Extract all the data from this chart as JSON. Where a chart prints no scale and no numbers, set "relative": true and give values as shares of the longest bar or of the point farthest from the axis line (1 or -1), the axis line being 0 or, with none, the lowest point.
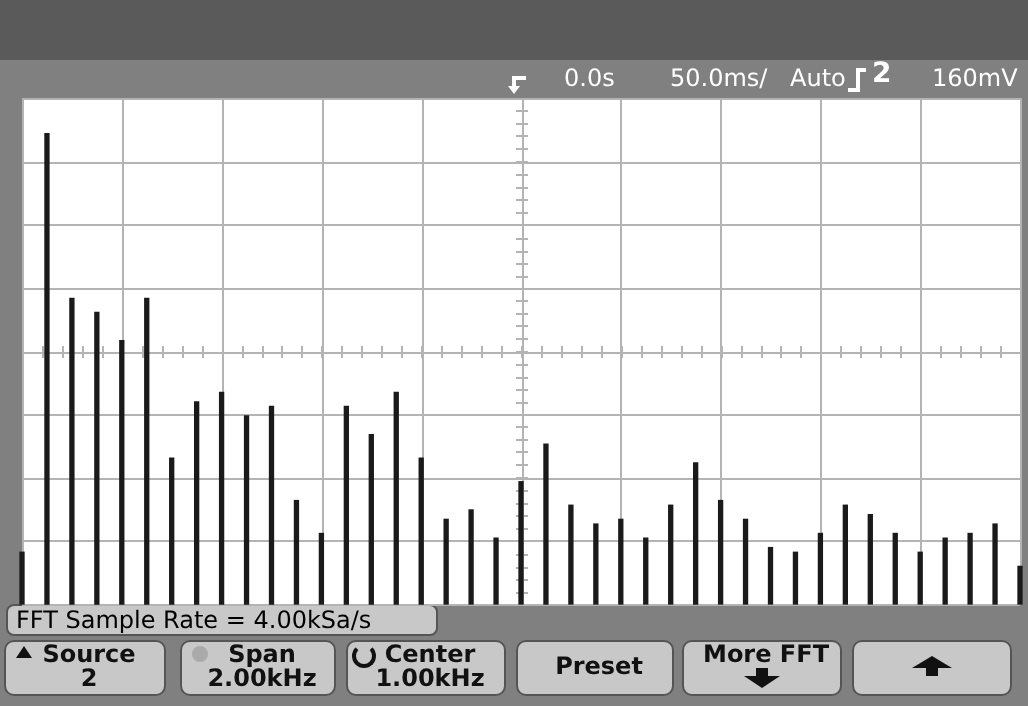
{
  "chart_data": {
    "type": "bar",
    "relative": true,
    "grid": true,
    "color": "#1a1a1a",
    "categories": [
      null,
      null,
      null,
      null,
      null,
      null,
      null,
      null,
      null,
      null,
      null,
      null,
      null,
      null,
      null,
      null,
      null,
      null,
      null,
      null,
      null,
      null,
      null,
      null,
      null,
      null,
      null,
      null,
      null,
      null,
      null,
      null,
      null,
      null,
      null,
      null,
      null,
      null,
      null,
      null,
      null
    ],
    "values": [
      0.11,
      1.0,
      0.65,
      0.62,
      0.56,
      0.65,
      0.31,
      0.43,
      0.45,
      0.4,
      0.42,
      0.22,
      0.15,
      0.42,
      0.36,
      0.45,
      0.31,
      0.18,
      0.2,
      0.14,
      0.26,
      0.34,
      0.21,
      0.17,
      0.18,
      0.14,
      0.21,
      0.3,
      0.22,
      0.18,
      0.12,
      0.11,
      0.15,
      0.21,
      0.19,
      0.15,
      0.11,
      0.14,
      0.15,
      0.17,
      0.08
    ],
    "annotations": [
      "0.0s",
      "50.0ms/",
      "Auto",
      "2",
      "160mV",
      "FFT Sample Rate = 4.00kSa/s",
      "Source\n2",
      "Span\n2.00kHz",
      "Center\n1.00kHz",
      "Preset",
      "More FFT"
    ]
  }
}
